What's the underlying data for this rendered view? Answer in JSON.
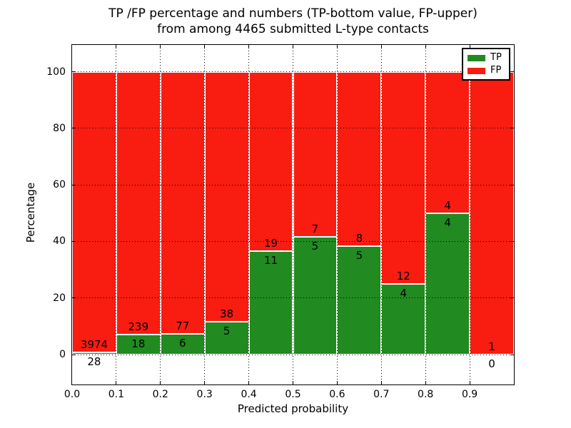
{
  "title": {
    "line1": "TP /FP percentage and numbers (TP-bottom value, FP-upper)",
    "line2": "from among 4465 submitted L-type contacts"
  },
  "axes": {
    "xlabel": "Predicted probability",
    "ylabel": "Percentage",
    "xtick_labels": [
      "0.0",
      "0.1",
      "0.2",
      "0.3",
      "0.4",
      "0.5",
      "0.6",
      "0.7",
      "0.8",
      "0.9"
    ],
    "ytick_labels": [
      "0",
      "20",
      "40",
      "60",
      "80",
      "100"
    ]
  },
  "legend": {
    "position": "upper right",
    "items": [
      {
        "label": "TP",
        "color": "#218a21"
      },
      {
        "label": "FP",
        "color": "#f91c10"
      }
    ]
  },
  "chart_data": {
    "type": "bar",
    "stacked": true,
    "normalized": "each bin scaled to 100%",
    "title": "TP /FP percentage and numbers (TP-bottom value, FP-upper) from among 4465 submitted L-type contacts",
    "xlabel": "Predicted probability",
    "ylabel": "Percentage",
    "xlim": [
      0.0,
      1.0
    ],
    "ylim": [
      -11,
      110
    ],
    "grid": true,
    "grid_style": "dotted",
    "bin_width": 0.1,
    "categories": [
      "0.0-0.1",
      "0.1-0.2",
      "0.2-0.3",
      "0.3-0.4",
      "0.4-0.5",
      "0.5-0.6",
      "0.6-0.7",
      "0.7-0.8",
      "0.8-0.9",
      "0.9-1.0"
    ],
    "xticks": [
      0.0,
      0.1,
      0.2,
      0.3,
      0.4,
      0.5,
      0.6,
      0.7,
      0.8,
      0.9
    ],
    "yticks": [
      0,
      20,
      40,
      60,
      80,
      100
    ],
    "series": [
      {
        "name": "TP",
        "color": "#218a21",
        "counts": [
          28,
          18,
          6,
          5,
          11,
          5,
          5,
          4,
          4,
          0
        ]
      },
      {
        "name": "FP",
        "color": "#f91c10",
        "counts": [
          3974,
          239,
          77,
          38,
          19,
          7,
          8,
          12,
          4,
          1
        ]
      }
    ],
    "tp_percent": [
      0.7,
      7.0,
      7.2,
      11.6,
      36.7,
      41.7,
      38.5,
      25.0,
      50.0,
      0.0
    ],
    "total_submitted": 4465
  },
  "colors": {
    "tp": "#218a21",
    "fp": "#f91c10",
    "bar_edge": "#ffffff",
    "grid": "#000000",
    "background": "#ffffff",
    "text": "#000000"
  }
}
